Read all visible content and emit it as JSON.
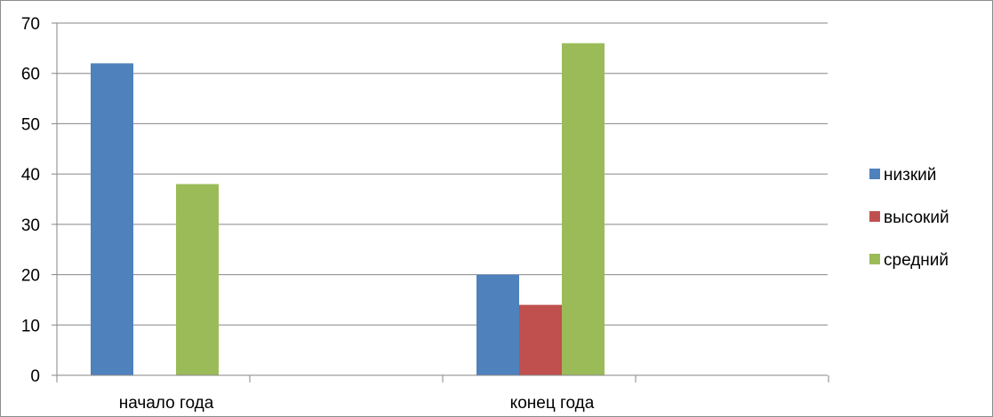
{
  "chart_data": {
    "type": "bar",
    "categories": [
      "начало года",
      "конец года"
    ],
    "series": [
      {
        "name": "низкий",
        "values": [
          62,
          20
        ],
        "color": "#4F81BD"
      },
      {
        "name": "высокий",
        "values": [
          0,
          14
        ],
        "color": "#C0504D"
      },
      {
        "name": "средний",
        "values": [
          38,
          66
        ],
        "color": "#9BBB59"
      }
    ],
    "ylim": [
      0,
      70
    ],
    "yticks": [
      0,
      10,
      20,
      30,
      40,
      50,
      60,
      70
    ],
    "grid": true,
    "legend_position": "right",
    "title": "",
    "xlabel": "",
    "ylabel": ""
  }
}
